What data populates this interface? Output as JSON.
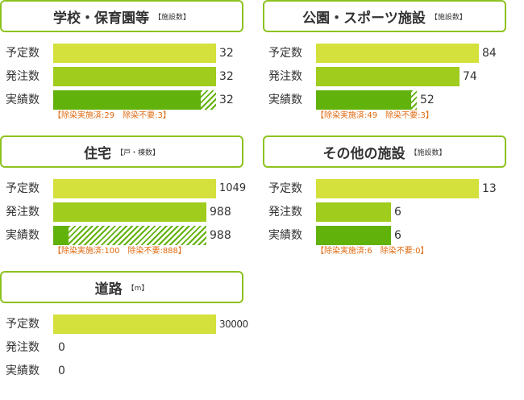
{
  "row_labels": {
    "plan": "予定数",
    "order": "発注数",
    "done": "実績数"
  },
  "colors": {
    "frame": "#8dc21f",
    "plan": "#d4e03b",
    "order": "#9fcc1d",
    "done": "#62b20c",
    "note": "#e06a10"
  },
  "chart_data": [
    {
      "type": "bar",
      "title": "学校・保育園等",
      "unit": "【施設数】",
      "categories": [
        "予定数",
        "発注数",
        "実績数"
      ],
      "values": [
        32,
        32,
        32
      ],
      "done_breakdown": {
        "decontaminated": 29,
        "not_required": 3
      },
      "note": "【除染実施済:29　除染不要:3】"
    },
    {
      "type": "bar",
      "title": "公園・スポーツ施設",
      "unit": "【施設数】",
      "categories": [
        "予定数",
        "発注数",
        "実績数"
      ],
      "values": [
        84,
        74,
        52
      ],
      "done_breakdown": {
        "decontaminated": 49,
        "not_required": 3
      },
      "note": "【除染実施済:49　除染不要:3】"
    },
    {
      "type": "bar",
      "title": "住宅",
      "unit": "【戸・棟数】",
      "categories": [
        "予定数",
        "発注数",
        "実績数"
      ],
      "values": [
        1049,
        988,
        988
      ],
      "done_breakdown": {
        "decontaminated": 100,
        "not_required": 888
      },
      "note": "【除染実施済:100　除染不要:888】"
    },
    {
      "type": "bar",
      "title": "その他の施設",
      "unit": "【施設数】",
      "categories": [
        "予定数",
        "発注数",
        "実績数"
      ],
      "values": [
        13,
        6,
        6
      ],
      "done_breakdown": {
        "decontaminated": 6,
        "not_required": 0
      },
      "note": "【除染実施済:6　除染不要:0】"
    },
    {
      "type": "bar",
      "title": "道路",
      "unit": "【m】",
      "categories": [
        "予定数",
        "発注数",
        "実績数"
      ],
      "values": [
        30000,
        0,
        0
      ],
      "note": ""
    }
  ]
}
